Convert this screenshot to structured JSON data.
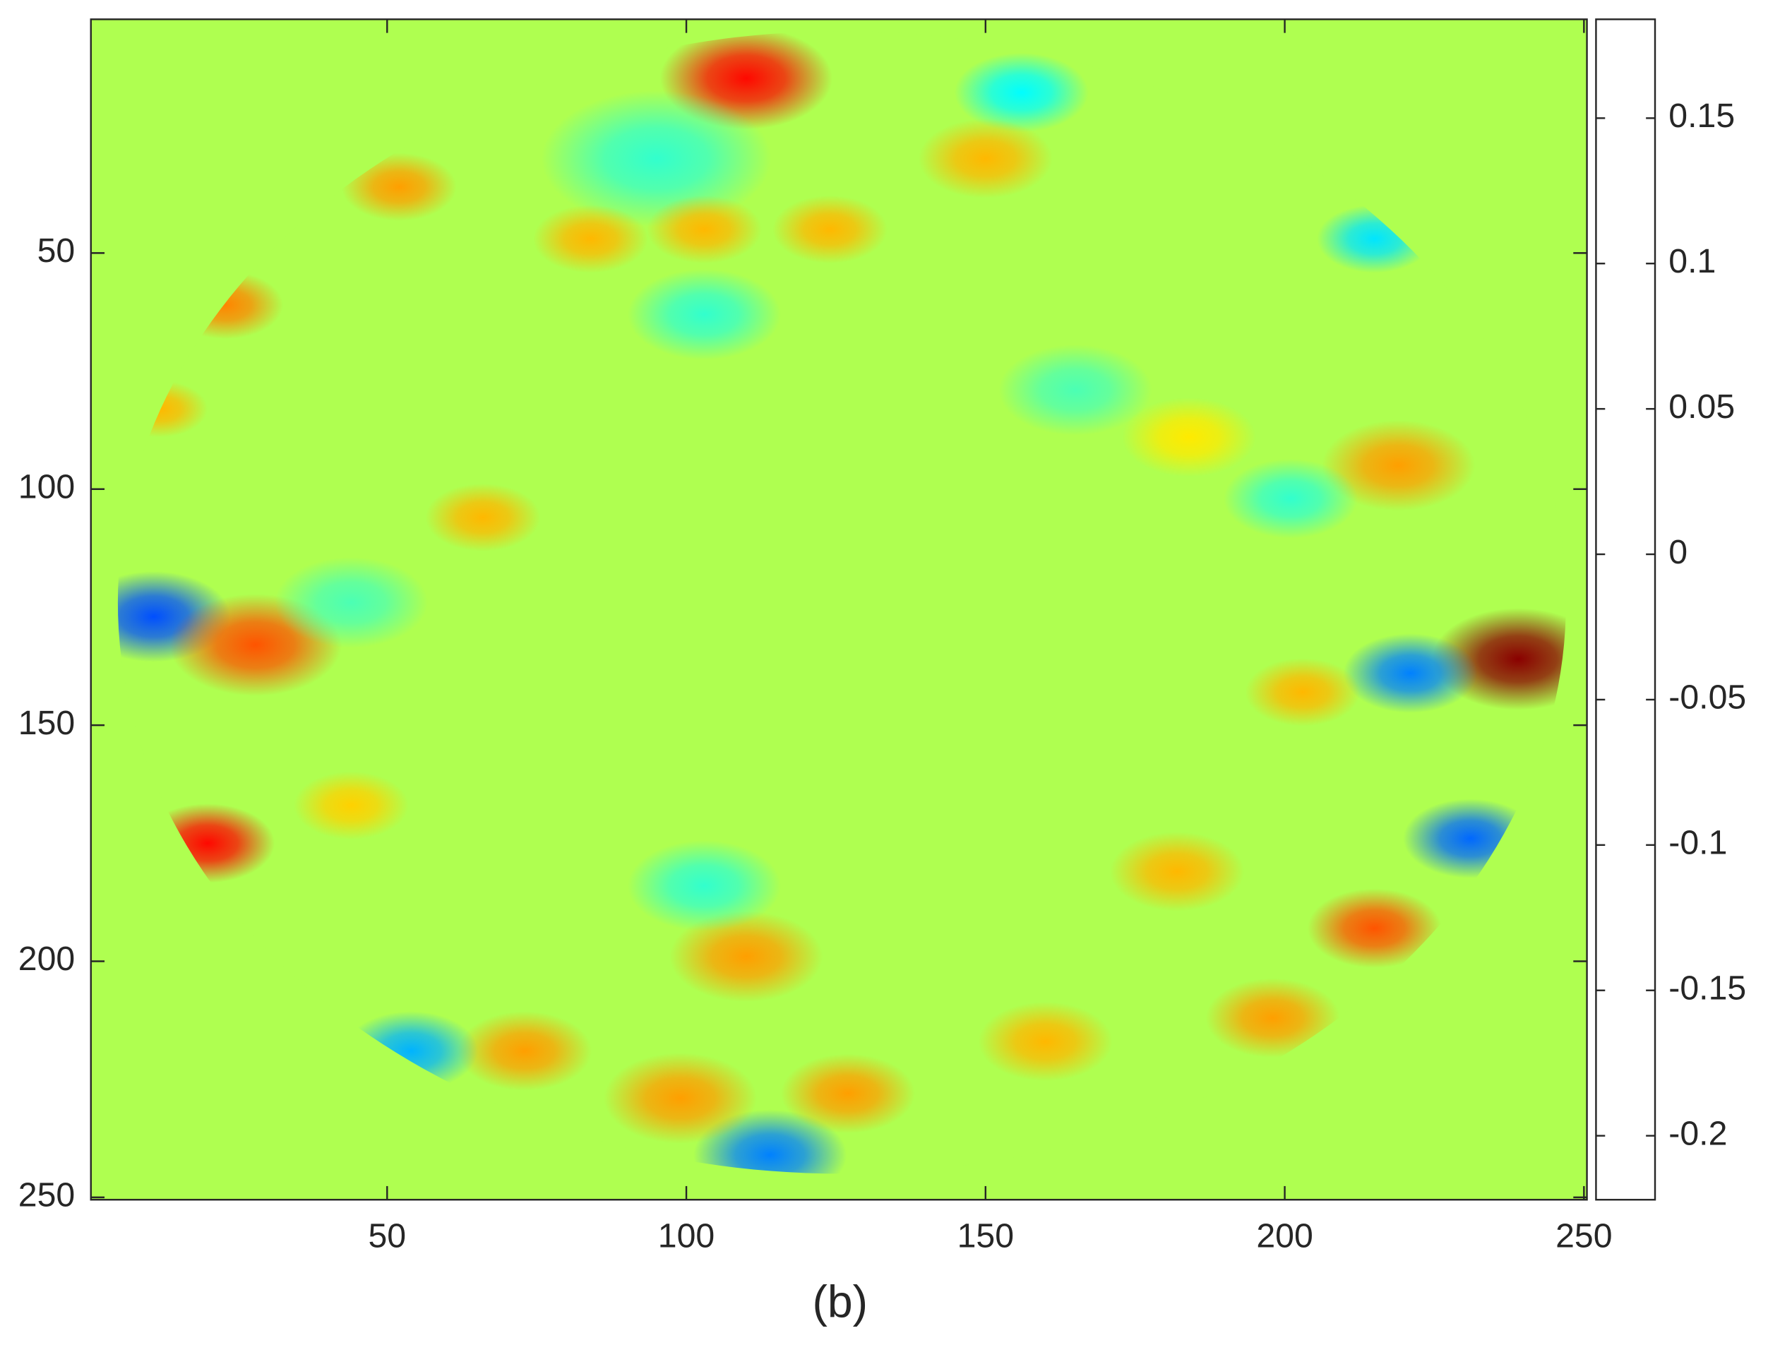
{
  "chart_data": {
    "type": "heatmap",
    "caption": "(b)",
    "xlim": [
      0.5,
      250.5
    ],
    "ylim": [
      0.5,
      250.5
    ],
    "y_reversed": true,
    "xticks": [
      50,
      100,
      150,
      200,
      250
    ],
    "yticks": [
      50,
      100,
      150,
      200,
      250
    ],
    "colormap": "jet",
    "clim": [
      -0.222,
      0.184
    ],
    "cticks": [
      -0.2,
      -0.15,
      -0.1,
      -0.05,
      0,
      0.05,
      0.1,
      0.15
    ],
    "background_value": 0,
    "aperture": {
      "cx": 126,
      "cy": 124,
      "r": 121
    },
    "spots": [
      {
        "x": 110,
        "y": 13,
        "value": 0.13,
        "size": 9
      },
      {
        "x": 11,
        "y": 127,
        "value": -0.14,
        "size": 8
      },
      {
        "x": 28,
        "y": 133,
        "value": 0.1,
        "size": 9
      },
      {
        "x": 239,
        "y": 136,
        "value": 0.18,
        "size": 9
      },
      {
        "x": 221,
        "y": 139,
        "value": -0.12,
        "size": 7
      },
      {
        "x": 231,
        "y": 174,
        "value": -0.13,
        "size": 7
      },
      {
        "x": 20,
        "y": 175,
        "value": 0.13,
        "size": 7
      },
      {
        "x": 215,
        "y": 193,
        "value": 0.1,
        "size": 7
      },
      {
        "x": 114,
        "y": 241,
        "value": -0.12,
        "size": 8
      },
      {
        "x": 99,
        "y": 229,
        "value": 0.07,
        "size": 8
      },
      {
        "x": 127,
        "y": 228,
        "value": 0.07,
        "size": 7
      },
      {
        "x": 73,
        "y": 219,
        "value": 0.07,
        "size": 7
      },
      {
        "x": 54,
        "y": 219,
        "value": -0.1,
        "size": 7
      },
      {
        "x": 160,
        "y": 217,
        "value": 0.06,
        "size": 7
      },
      {
        "x": 198,
        "y": 212,
        "value": 0.07,
        "size": 7
      },
      {
        "x": 219,
        "y": 95,
        "value": 0.07,
        "size": 8
      },
      {
        "x": 203,
        "y": 143,
        "value": 0.06,
        "size": 6
      },
      {
        "x": 66,
        "y": 106,
        "value": 0.06,
        "size": 6
      },
      {
        "x": 182,
        "y": 181,
        "value": 0.06,
        "size": 7
      },
      {
        "x": 156,
        "y": 16,
        "value": -0.07,
        "size": 7
      },
      {
        "x": 95,
        "y": 30,
        "value": -0.05,
        "size": 12
      },
      {
        "x": 150,
        "y": 30,
        "value": 0.06,
        "size": 7
      },
      {
        "x": 84,
        "y": 47,
        "value": 0.06,
        "size": 6
      },
      {
        "x": 103,
        "y": 45,
        "value": 0.06,
        "size": 6
      },
      {
        "x": 124,
        "y": 45,
        "value": 0.06,
        "size": 6
      },
      {
        "x": 52,
        "y": 36,
        "value": 0.07,
        "size": 6
      },
      {
        "x": 215,
        "y": 47,
        "value": -0.08,
        "size": 6
      },
      {
        "x": 103,
        "y": 63,
        "value": -0.05,
        "size": 8
      },
      {
        "x": 23,
        "y": 61,
        "value": 0.08,
        "size": 6
      },
      {
        "x": 201,
        "y": 102,
        "value": -0.05,
        "size": 7
      },
      {
        "x": 165,
        "y": 79,
        "value": -0.04,
        "size": 8
      },
      {
        "x": 184,
        "y": 89,
        "value": 0.04,
        "size": 7
      },
      {
        "x": 110,
        "y": 199,
        "value": 0.07,
        "size": 8
      },
      {
        "x": 103,
        "y": 184,
        "value": -0.05,
        "size": 8
      },
      {
        "x": 44,
        "y": 124,
        "value": -0.04,
        "size": 8
      },
      {
        "x": 44,
        "y": 167,
        "value": 0.05,
        "size": 6
      },
      {
        "x": 12,
        "y": 83,
        "value": 0.06,
        "size": 5
      }
    ]
  }
}
